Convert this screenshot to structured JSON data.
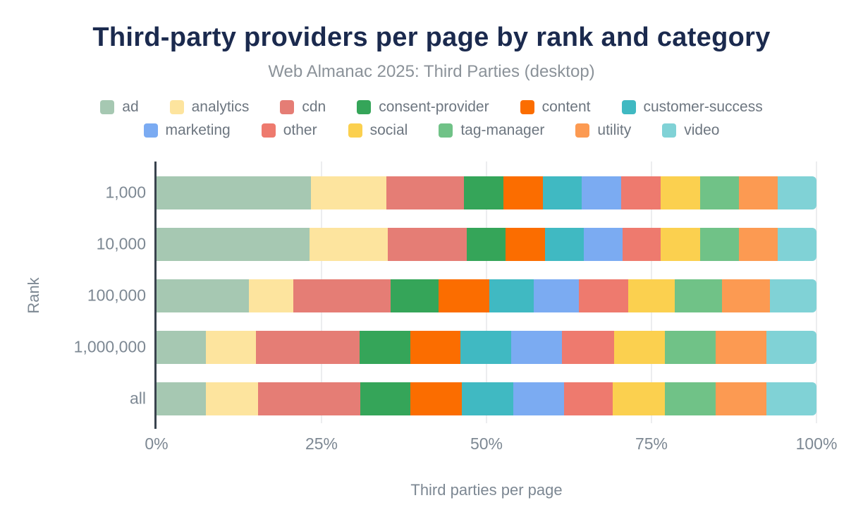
{
  "chart_data": {
    "type": "bar",
    "orientation": "horizontal",
    "stacked": true,
    "unit": "%",
    "title": "Third-party providers per page by rank and category",
    "subtitle": "Web Almanac 2025: Third Parties (desktop)",
    "xlabel": "Third parties per page",
    "ylabel": "Rank",
    "xlim": [
      0,
      100
    ],
    "x_ticks": [
      "0%",
      "25%",
      "50%",
      "75%",
      "100%"
    ],
    "grid": "vertical",
    "legend_position": "top",
    "legend_rows": 2,
    "categories": [
      "1,000",
      "10,000",
      "100,000",
      "1,000,000",
      "all"
    ],
    "series": [
      {
        "name": "ad",
        "color": "#a6c8b2",
        "values": [
          23.5,
          23.3,
          14.0,
          7.5,
          7.5
        ]
      },
      {
        "name": "analytics",
        "color": "#fde49e",
        "values": [
          11.5,
          11.8,
          6.8,
          7.6,
          7.8
        ]
      },
      {
        "name": "cdn",
        "color": "#e57d75",
        "values": [
          11.8,
          12.0,
          14.7,
          15.7,
          15.5
        ]
      },
      {
        "name": "consent-provider",
        "color": "#35a559",
        "values": [
          6.0,
          5.9,
          7.3,
          7.7,
          7.5
        ]
      },
      {
        "name": "content",
        "color": "#fb6d00",
        "values": [
          6.0,
          6.0,
          7.7,
          7.6,
          7.8
        ]
      },
      {
        "name": "customer-success",
        "color": "#40b9c2",
        "values": [
          6.0,
          5.9,
          6.7,
          7.7,
          7.7
        ]
      },
      {
        "name": "marketing",
        "color": "#7babf2",
        "values": [
          6.0,
          5.9,
          6.9,
          7.7,
          7.7
        ]
      },
      {
        "name": "other",
        "color": "#ee7a6e",
        "values": [
          6.0,
          5.8,
          7.4,
          7.9,
          7.3
        ]
      },
      {
        "name": "social",
        "color": "#fbd04f",
        "values": [
          6.0,
          6.0,
          7.1,
          7.7,
          7.9
        ]
      },
      {
        "name": "tag-manager",
        "color": "#70c287",
        "values": [
          5.9,
          5.9,
          7.2,
          7.7,
          7.7
        ]
      },
      {
        "name": "utility",
        "color": "#fc9a52",
        "values": [
          5.9,
          5.9,
          7.2,
          7.7,
          7.6
        ]
      },
      {
        "name": "video",
        "color": "#80d2d6",
        "values": [
          5.9,
          5.9,
          7.1,
          7.6,
          7.6
        ]
      }
    ]
  },
  "style": {
    "title_color": "#1b2a4e",
    "subtitle_color": "#8b9299",
    "axis_line_color": "#39434e",
    "gridline_color": "#ecedef",
    "tick_label_color": "#7d8893",
    "legend_label_color": "#6d7680",
    "background": "#ffffff"
  }
}
